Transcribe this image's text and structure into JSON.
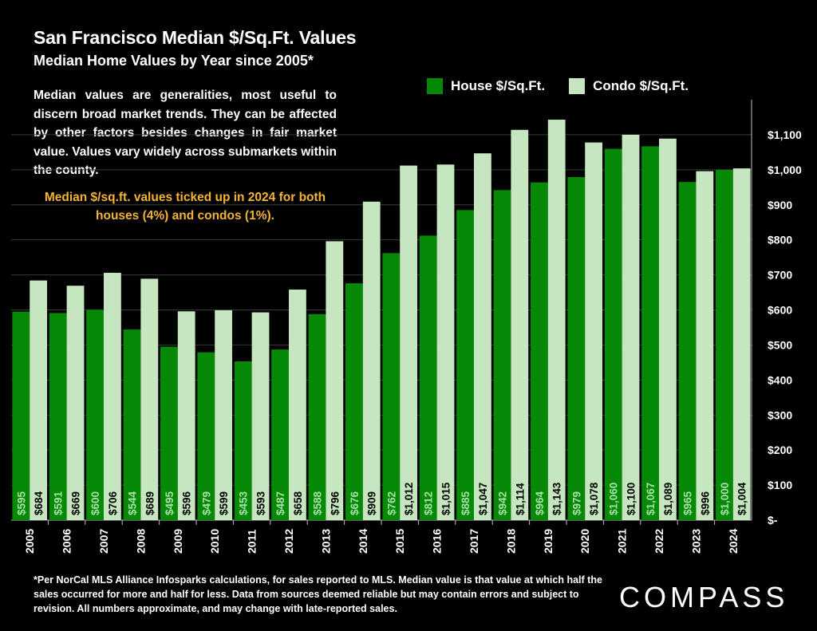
{
  "title": "San Francisco Median $/Sq.Ft. Values",
  "subtitle": "Median Home Values by Year since 2005*",
  "description": "Median values are generalities, most useful to discern broad market trends. They can be affected by other factors besides changes in fair market value. Values vary widely across submarkets within the county.",
  "highlight": "Median $/sq.ft. values ticked up in 2024 for both houses (4%) and condos (1%).",
  "footnote": "*Per NorCal MLS Alliance Infosparks calculations, for sales reported to MLS. Median value is that value at which half the sales occurred for more and half for less. Data from sources deemed reliable but may contain errors and subject to revision. All numbers approximate, and may change with late-reported sales.",
  "logo": "COMPASS",
  "colors": {
    "house": "#068906",
    "condo": "#c6e6bf",
    "highlight": "#f5b335",
    "background": "#000000",
    "grid": "#3a3a3a"
  },
  "chart_data": {
    "type": "bar",
    "categories": [
      "2005",
      "2006",
      "2007",
      "2008",
      "2009",
      "2010",
      "2011",
      "2012",
      "2013",
      "2014",
      "2015",
      "2016",
      "2017",
      "2018",
      "2019",
      "2020",
      "2021",
      "2022",
      "2023",
      "2024"
    ],
    "series": [
      {
        "name": "House $/Sq.Ft.",
        "values": [
          595,
          591,
          600,
          544,
          495,
          479,
          453,
          487,
          588,
          676,
          762,
          812,
          885,
          942,
          964,
          979,
          1060,
          1067,
          965,
          1000
        ],
        "labels": [
          "$595",
          "$591",
          "$600",
          "$544",
          "$495",
          "$479",
          "$453",
          "$487",
          "$588",
          "$676",
          "$762",
          "$812",
          "$885",
          "$942",
          "$964",
          "$979",
          "$1,060",
          "$1,067",
          "$965",
          "$1,000"
        ]
      },
      {
        "name": "Condo $/Sq.Ft.",
        "values": [
          684,
          669,
          706,
          689,
          596,
          599,
          593,
          658,
          796,
          909,
          1012,
          1015,
          1047,
          1114,
          1143,
          1078,
          1100,
          1089,
          996,
          1004
        ],
        "labels": [
          "$684",
          "$669",
          "$706",
          "$689",
          "$596",
          "$599",
          "$593",
          "$658",
          "$796",
          "$909",
          "$1,012",
          "$1,015",
          "$1,047",
          "$1,114",
          "$1,143",
          "$1,078",
          "$1,100",
          "$1,089",
          "$996",
          "$1,004"
        ]
      }
    ],
    "ylim": [
      0,
      1200
    ],
    "yticks": [
      0,
      100,
      200,
      300,
      400,
      500,
      600,
      700,
      800,
      900,
      1000,
      1100
    ],
    "ytick_labels": [
      "$-",
      "$100",
      "$200",
      "$300",
      "$400",
      "$500",
      "$600",
      "$700",
      "$800",
      "$900",
      "$1,000",
      "$1,100"
    ],
    "y_axis_side": "right",
    "grid": true,
    "legend_position": "top-right"
  }
}
